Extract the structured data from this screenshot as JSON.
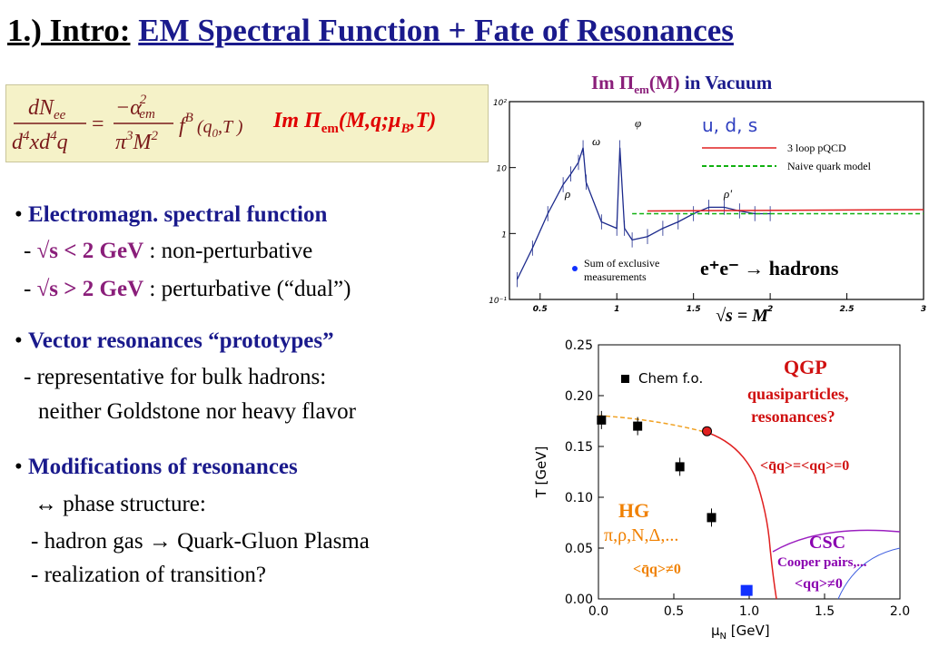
{
  "slide": {
    "title_number": "1.) Intro:",
    "title_text": "EM Spectral Function + Fate of Resonances"
  },
  "formula": {
    "num": "dN",
    "num_sub": "ee",
    "den": "d",
    "den_exp1": "4",
    "den_x": "x",
    "den_d2": "d",
    "den_exp2": "4",
    "den_q": "q",
    "eq": "=",
    "frac_num": "−α",
    "frac_num_exp": "2",
    "frac_num_sub": "em",
    "frac_den": "π",
    "frac_den_exp": "3",
    "frac_den_M": "M",
    "frac_den_M_exp": "2",
    "fB": "f",
    "fB_sup": "B",
    "fB_args": "(q",
    "fB_sub0": "0",
    "fB_argT": ",T )",
    "im_text": "Im Π",
    "im_sub": "em",
    "im_args": "(M,q;μ",
    "im_sub_B": "B",
    "im_args2": ",T)"
  },
  "vacuum_caption": {
    "im": "Im Π",
    "sub": "em",
    "arg": "(M)",
    "rest": " in Vacuum"
  },
  "bullets": {
    "b1_title": "Electromagn. spectral function",
    "b1_l1_dash": "- ",
    "b1_l1_math": "√s < 2 GeV",
    "b1_l1_rest": " : non-perturbative",
    "b1_l2_dash": "- ",
    "b1_l2_math": "√s > 2 GeV",
    "b1_l2_rest": " : perturbative (“dual”)",
    "b2_title": "Vector resonances “prototypes”",
    "b2_l1": "- representative for bulk hadrons:",
    "b2_l2": "neither Goldstone nor heavy flavor",
    "b3_title": "Modifications of resonances",
    "b3_l1": "↔ phase structure:",
    "b3_l2": "- hadron gas → Quark-Gluon Plasma",
    "b3_l3": "- realization of transition?"
  },
  "spectrum_chart": {
    "legend_uds": "u, d, s",
    "legend_pqcd": "3 loop pQCD",
    "legend_naive": "Naive quark model",
    "legend_sum1": "Sum of exclusive",
    "legend_sum2": "measurements",
    "process_label": "e⁺e⁻ → hadrons",
    "peak_rho": "ρ",
    "peak_omega": "ω",
    "peak_phi": "φ",
    "peak_rhoprime": "ρ'",
    "sqrt_label": "√s = M",
    "colors": {
      "data": "#1c2a8c",
      "pqcd": "#e02020",
      "naive": "#10b010"
    }
  },
  "phase_chart": {
    "ylabel": "T [GeV]",
    "xlabel": "μ",
    "xlabel_sub": "N",
    "xlabel_unit": " [GeV]",
    "legend": "Chem f.o.",
    "qgp": "QGP",
    "qgp2": "quasiparticles,",
    "qgp3": "resonances?",
    "cond_qgp": "<q̄q>=<qq>=0",
    "hg": "HG",
    "hg2": "π,ρ,N,Δ,...",
    "cond_hg": "<q̄q>≠0",
    "csc": "CSC",
    "csc2": "Cooper pairs,...",
    "cond_csc": "<qq>≠0",
    "colors": {
      "transition": "#e02020",
      "csc": "#9b20c0",
      "crossover": "#f0a020",
      "qgp_text": "#d01010",
      "hg_text": "#f08000",
      "csc_text": "#8a00b0",
      "nucleon": "#1030ff"
    }
  },
  "chart_data": [
    {
      "type": "line",
      "xlim": [
        0.3,
        3.0
      ],
      "ylim": [
        0.1,
        100
      ],
      "yscale": "log",
      "x_ticks": [
        "0.5",
        "1",
        "1.5",
        "2",
        "2.5",
        "3"
      ],
      "y_ticks": [
        "10⁻¹",
        "1",
        "10",
        "10²"
      ],
      "series": [
        {
          "name": "Sum of exclusive measurements",
          "x": [
            0.35,
            0.45,
            0.55,
            0.65,
            0.7,
            0.75,
            0.78,
            0.8,
            0.9,
            1.0,
            1.02,
            1.05,
            1.1,
            1.2,
            1.3,
            1.4,
            1.5,
            1.6,
            1.7,
            1.8,
            1.9,
            2.0
          ],
          "y": [
            0.2,
            0.6,
            2.0,
            5.5,
            8.0,
            12,
            20,
            6,
            1.5,
            1.2,
            20,
            1.2,
            0.8,
            0.9,
            1.2,
            1.5,
            2.0,
            2.5,
            2.5,
            2.2,
            2.0,
            2.0
          ]
        },
        {
          "name": "3 loop pQCD",
          "x": [
            1.2,
            3.0
          ],
          "y": [
            2.2,
            2.3
          ]
        },
        {
          "name": "Naive quark model",
          "x": [
            1.1,
            3.0
          ],
          "y": [
            2.0,
            2.0
          ]
        }
      ]
    },
    {
      "type": "scatter",
      "xlim": [
        0.0,
        2.0
      ],
      "ylim": [
        0.0,
        0.25
      ],
      "x_ticks": [
        "0.0",
        "0.5",
        "1.0",
        "1.5",
        "2.0"
      ],
      "y_ticks": [
        "0.00",
        "0.05",
        "0.10",
        "0.15",
        "0.20",
        "0.25"
      ],
      "series": [
        {
          "name": "Chem f.o.",
          "x": [
            0.02,
            0.26,
            0.54,
            0.75
          ],
          "y": [
            0.176,
            0.17,
            0.13,
            0.08
          ]
        }
      ],
      "critical_point": {
        "x": 0.72,
        "y": 0.165
      },
      "nuclear_matter": {
        "x": 0.98,
        "y": 0.003
      }
    }
  ]
}
